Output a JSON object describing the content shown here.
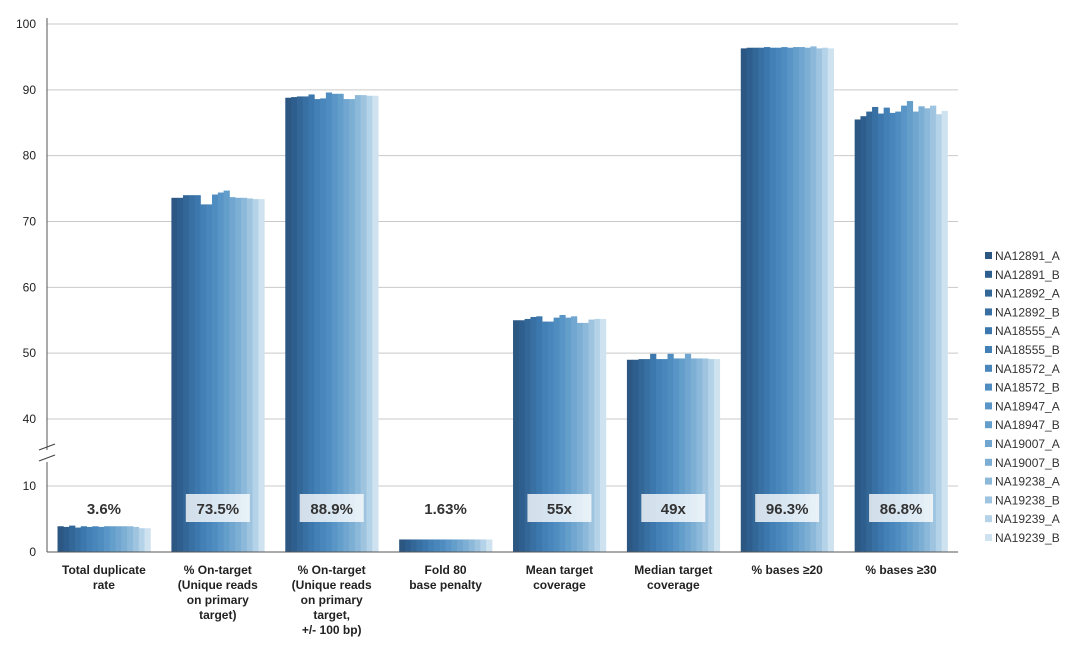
{
  "chart_data": {
    "type": "bar",
    "ylim": [
      0,
      100
    ],
    "y_ticks": [
      0,
      10,
      40,
      50,
      60,
      70,
      80,
      90,
      100
    ],
    "axis_break": "between 10 and 40",
    "grid": true,
    "legend_position": "right",
    "categories": [
      "Total duplicate rate",
      "% On-target (Unique reads on primary target)",
      "% On-target (Unique reads on primary target, +/- 100 bp)",
      "Fold 80 base penalty",
      "Mean target coverage",
      "Median target coverage",
      "% bases ≥20",
      "% bases ≥30"
    ],
    "category_label_lines": [
      [
        "Total duplicate",
        "rate"
      ],
      [
        "% On-target",
        "(Unique reads",
        "on primary",
        "target)"
      ],
      [
        "% On-target",
        "(Unique reads",
        "on primary",
        "target,",
        "+/- 100 bp)"
      ],
      [
        "Fold 80",
        "base penalty"
      ],
      [
        "Mean target",
        "coverage"
      ],
      [
        "Median target",
        "coverage"
      ],
      [
        "% bases ≥20"
      ],
      [
        "% bases ≥30"
      ]
    ],
    "summary_labels": [
      "3.6%",
      "73.5%",
      "88.9%",
      "1.63%",
      "55x",
      "49x",
      "96.3%",
      "86.8%"
    ],
    "series": [
      {
        "name": "NA12891_A",
        "color": "#2b5782",
        "values": [
          3.9,
          73.6,
          88.8,
          1.9,
          55.0,
          49.0,
          96.3,
          85.5
        ]
      },
      {
        "name": "NA12891_B",
        "color": "#2e5e8d",
        "values": [
          3.8,
          73.6,
          88.9,
          1.9,
          55.0,
          49.0,
          96.4,
          86.0
        ]
      },
      {
        "name": "NA12892_A",
        "color": "#336797",
        "values": [
          4.0,
          74.0,
          89.0,
          1.9,
          55.2,
          49.1,
          96.4,
          86.7
        ]
      },
      {
        "name": "NA12892_B",
        "color": "#3870a3",
        "values": [
          3.7,
          74.0,
          89.0,
          1.9,
          55.5,
          49.1,
          96.4,
          87.4
        ]
      },
      {
        "name": "NA18555_A",
        "color": "#3c78ad",
        "values": [
          3.9,
          74.0,
          89.3,
          1.9,
          55.6,
          49.9,
          96.5,
          86.4
        ]
      },
      {
        "name": "NA18555_B",
        "color": "#4280b6",
        "values": [
          3.8,
          72.6,
          88.6,
          1.9,
          54.8,
          49.1,
          96.4,
          87.3
        ]
      },
      {
        "name": "NA18572_A",
        "color": "#4886bb",
        "values": [
          3.9,
          72.6,
          88.7,
          1.9,
          54.8,
          49.1,
          96.4,
          86.5
        ]
      },
      {
        "name": "NA18572_B",
        "color": "#4f8dc1",
        "values": [
          3.8,
          74.1,
          89.6,
          1.9,
          55.4,
          49.9,
          96.5,
          86.7
        ]
      },
      {
        "name": "NA18947_A",
        "color": "#5995c6",
        "values": [
          3.9,
          74.4,
          89.4,
          1.9,
          55.8,
          49.2,
          96.4,
          87.6
        ]
      },
      {
        "name": "NA18947_B",
        "color": "#649ecb",
        "values": [
          3.9,
          74.7,
          89.4,
          1.9,
          55.4,
          49.2,
          96.5,
          88.3
        ]
      },
      {
        "name": "NA19007_A",
        "color": "#70a6cf",
        "values": [
          3.9,
          73.7,
          88.6,
          1.9,
          55.6,
          49.9,
          96.5,
          86.7
        ]
      },
      {
        "name": "NA19007_B",
        "color": "#7dafd4",
        "values": [
          3.9,
          73.6,
          88.6,
          1.9,
          54.6,
          49.2,
          96.4,
          87.5
        ]
      },
      {
        "name": "NA19238_A",
        "color": "#8cb9da",
        "values": [
          3.9,
          73.6,
          89.2,
          1.9,
          54.6,
          49.2,
          96.6,
          87.2
        ]
      },
      {
        "name": "NA19238_B",
        "color": "#9ec4e0",
        "values": [
          3.8,
          73.5,
          89.2,
          1.9,
          55.1,
          49.2,
          96.3,
          87.6
        ]
      },
      {
        "name": "NA19239_A",
        "color": "#b4d2e8",
        "values": [
          3.6,
          73.4,
          89.1,
          1.9,
          55.2,
          49.1,
          96.4,
          86.3
        ]
      },
      {
        "name": "NA19239_B",
        "color": "#cfe2f0",
        "values": [
          3.6,
          73.4,
          89.1,
          1.9,
          55.2,
          49.1,
          96.3,
          86.8
        ]
      }
    ]
  }
}
